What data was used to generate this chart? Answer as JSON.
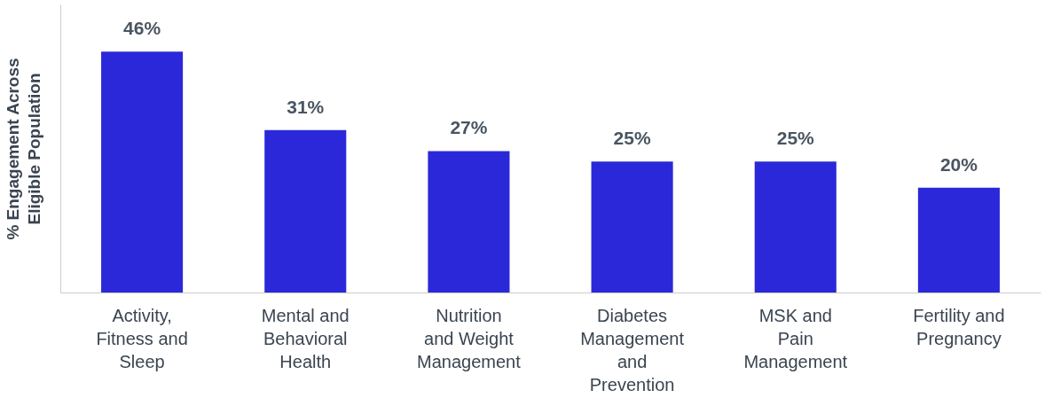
{
  "chart_data": {
    "type": "bar",
    "ylabel": "% Engagement Across Eligible Population",
    "categories": [
      "Activity, Fitness and Sleep",
      "Mental and Behavioral Health",
      "Nutrition and Weight Management",
      "Diabetes Management and Prevention",
      "MSK and Pain Management",
      "Fertility and Pregnancy"
    ],
    "values": [
      46,
      31,
      27,
      25,
      25,
      20
    ],
    "value_labels": [
      "46%",
      "31%",
      "27%",
      "25%",
      "25%",
      "20%"
    ],
    "color": "#2b28d9",
    "ylim": [
      0,
      55
    ],
    "tick_labels": "x",
    "grid": false
  }
}
